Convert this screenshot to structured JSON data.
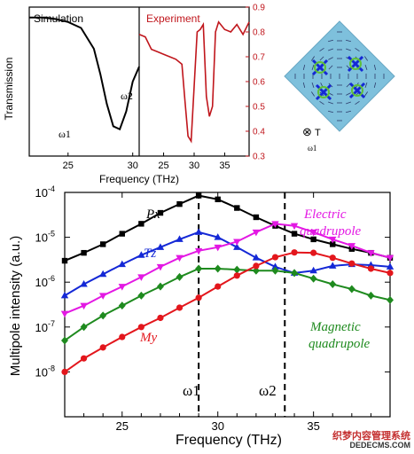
{
  "chart_data": [
    {
      "type": "line",
      "title": "Simulation",
      "xlabel": "Frequency (THz)",
      "ylabel": "Transmission",
      "xlim": [
        22,
        30.5
      ],
      "xticks": [
        25,
        30
      ],
      "ylim": [
        0,
        1
      ],
      "series": [
        {
          "name": "Simulation",
          "color": "#000000",
          "x": [
            22,
            23,
            24,
            25,
            26,
            27,
            27.5,
            28,
            28.5,
            29,
            29.5,
            30,
            30.5
          ],
          "values": [
            0.93,
            0.93,
            0.92,
            0.9,
            0.86,
            0.72,
            0.55,
            0.35,
            0.2,
            0.18,
            0.3,
            0.5,
            0.6
          ]
        }
      ],
      "annotations": [
        "ω1",
        "ω2"
      ]
    },
    {
      "type": "line",
      "title": "Experiment",
      "xlabel": "Frequency (THz)",
      "ylabel": "",
      "xlim": [
        21,
        39
      ],
      "xticks": [
        25,
        30,
        35
      ],
      "ylim": [
        0.3,
        0.9
      ],
      "yticks": [
        0.3,
        0.4,
        0.5,
        0.6,
        0.7,
        0.8,
        0.9
      ],
      "series": [
        {
          "name": "Experiment",
          "color": "#c0161c",
          "x": [
            21,
            22,
            23,
            24,
            25,
            26,
            27,
            27.5,
            28,
            28.5,
            29,
            29.5,
            30,
            30.5,
            31,
            31.5,
            32,
            32.5,
            33,
            33.5,
            34,
            35,
            36,
            37,
            38,
            39
          ],
          "values": [
            0.79,
            0.78,
            0.73,
            0.72,
            0.71,
            0.7,
            0.69,
            0.68,
            0.67,
            0.52,
            0.38,
            0.36,
            0.58,
            0.8,
            0.81,
            0.83,
            0.54,
            0.46,
            0.5,
            0.8,
            0.84,
            0.81,
            0.8,
            0.83,
            0.79,
            0.84
          ]
        }
      ]
    },
    {
      "type": "line",
      "title": "",
      "xlabel": "Frequency (THz)",
      "ylabel": "Multipole intensity (a.u.)",
      "xlim": [
        22,
        39
      ],
      "xticks": [
        25,
        30,
        35
      ],
      "yscale": "log",
      "ylim": [
        1e-09,
        0.0001
      ],
      "yticks": [
        "10^-8",
        "10^-7",
        "10^-6",
        "10^-5",
        "10^-4"
      ],
      "x": [
        22,
        23,
        24,
        25,
        26,
        27,
        28,
        29,
        30,
        31,
        32,
        33,
        34,
        35,
        36,
        37,
        38,
        39
      ],
      "series": [
        {
          "name": "Px",
          "color": "#000000",
          "marker": "square",
          "values": [
            3e-06,
            4.5e-06,
            7e-06,
            1.2e-05,
            2e-05,
            3.5e-05,
            5.5e-05,
            8.5e-05,
            7e-05,
            4.5e-05,
            2.8e-05,
            1.8e-05,
            1.2e-05,
            9e-06,
            7e-06,
            5.5e-06,
            4.5e-06,
            3.5e-06
          ]
        },
        {
          "name": "Tz",
          "color": "#1428d6",
          "marker": "triangle-up",
          "values": [
            5e-07,
            9e-07,
            1.5e-06,
            2.5e-06,
            4e-06,
            6e-06,
            9e-06,
            1.3e-05,
            1e-05,
            6e-06,
            3.5e-06,
            2.2e-06,
            1.6e-06,
            1.8e-06,
            2.3e-06,
            2.5e-06,
            2.4e-06,
            2.2e-06
          ]
        },
        {
          "name": "Electric quadrupole",
          "color": "#e318e3",
          "marker": "triangle-down",
          "values": [
            2e-07,
            3e-07,
            5e-07,
            8e-07,
            1.3e-06,
            2.2e-06,
            3.5e-06,
            5e-06,
            6e-06,
            8e-06,
            1.3e-05,
            2e-05,
            1.8e-05,
            1.3e-05,
            9e-06,
            6.5e-06,
            4.5e-06,
            3.5e-06
          ]
        },
        {
          "name": "Magnetic quadrupole",
          "color": "#1e8a1e",
          "marker": "diamond",
          "values": [
            5e-08,
            1e-07,
            1.8e-07,
            3e-07,
            5e-07,
            8e-07,
            1.3e-06,
            2e-06,
            2e-06,
            1.9e-06,
            1.8e-06,
            1.8e-06,
            1.6e-06,
            1.2e-06,
            9e-07,
            7e-07,
            5e-07,
            4e-07
          ]
        },
        {
          "name": "My",
          "color": "#e3161c",
          "marker": "circle",
          "values": [
            1e-08,
            2e-08,
            3.5e-08,
            6e-08,
            1e-07,
            1.6e-07,
            2.7e-07,
            4.5e-07,
            8e-07,
            1.4e-06,
            2.3e-06,
            3.6e-06,
            4.6e-06,
            4.5e-06,
            3.5e-06,
            2.6e-06,
            2e-06,
            1.6e-06
          ]
        }
      ],
      "annotations": [
        "ω1",
        "ω2"
      ],
      "vlines": [
        29,
        33.5
      ]
    }
  ],
  "inset": {
    "labels": [
      "ω1"
    ],
    "marker_label": "T"
  },
  "watermark": {
    "line1": "织梦内容管理系统",
    "line2": "DEDECMS.COM"
  },
  "colors": {
    "px": "#000000",
    "tz": "#1428d6",
    "eq": "#e318e3",
    "mq": "#1e8a1e",
    "my": "#e3161c",
    "experiment": "#c0161c",
    "inset_bg": "#7ec0dc"
  }
}
